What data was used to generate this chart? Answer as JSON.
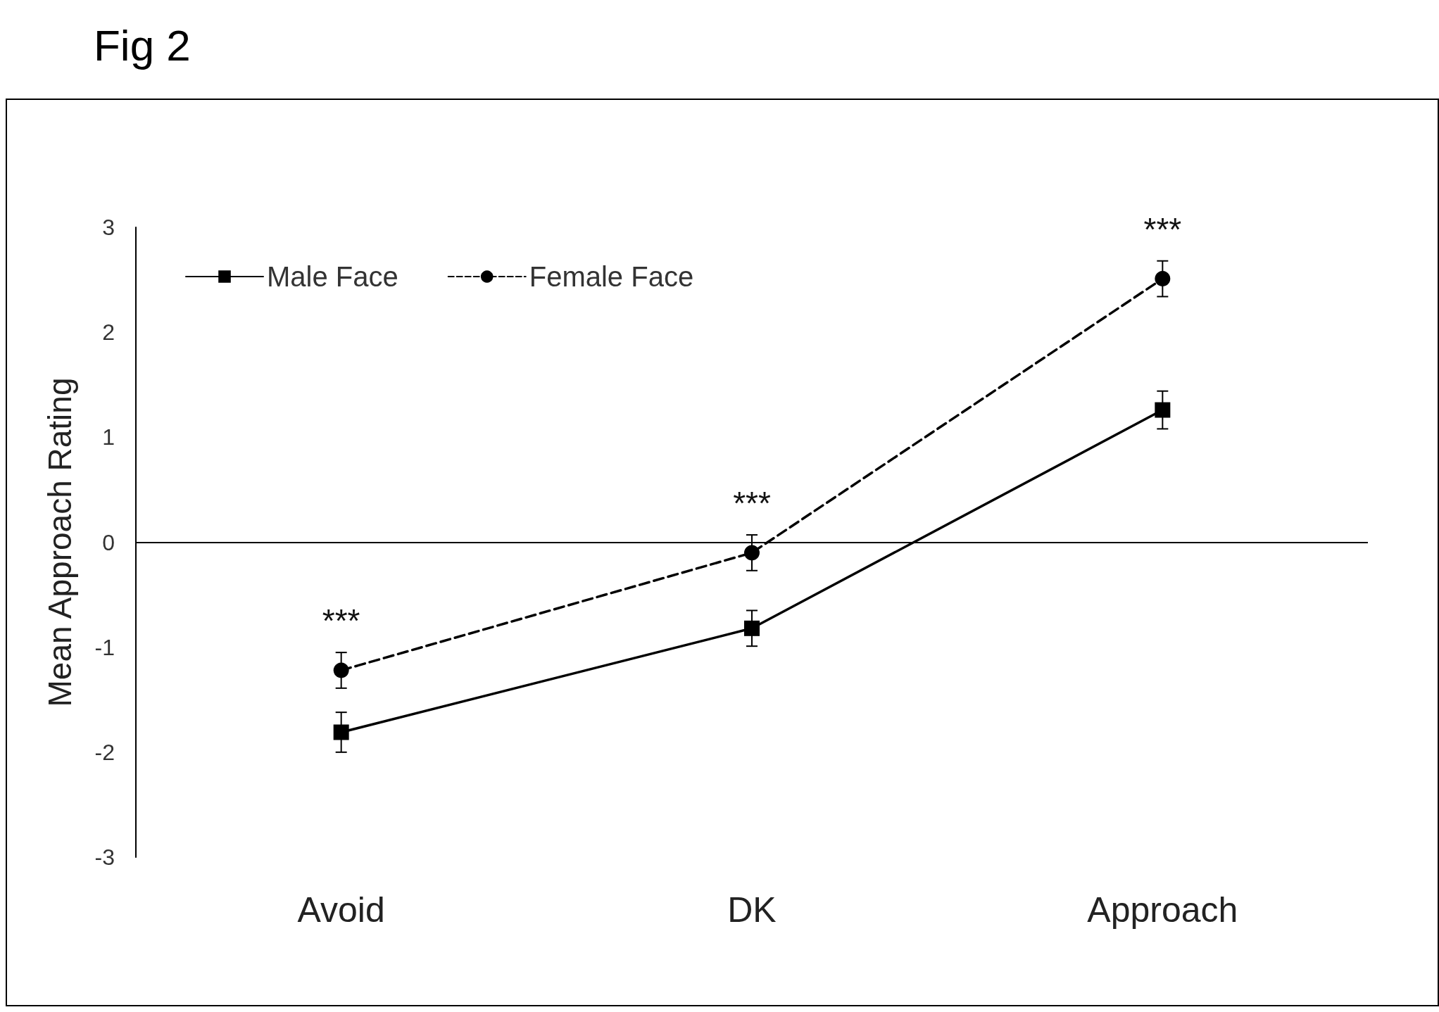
{
  "chart_data": {
    "type": "line",
    "title": "Fig 2",
    "ylabel": "Mean Approach Rating",
    "categories": [
      "Avoid",
      "DK",
      "Approach"
    ],
    "series": [
      {
        "name": "Male Face",
        "color": "#000000",
        "values": [
          -1.81,
          -0.82,
          1.26
        ],
        "errors": [
          0.19,
          0.17,
          0.18
        ],
        "marker": "square",
        "line_style": "solid"
      },
      {
        "name": "Female Face",
        "color": "#000000",
        "values": [
          -1.22,
          -0.1,
          2.51
        ],
        "errors": [
          0.17,
          0.17,
          0.17
        ],
        "marker": "circle",
        "line_style": "dashed"
      }
    ],
    "ylim": [
      -3,
      3
    ],
    "yticks": [
      -3,
      -2,
      -1,
      0,
      1,
      2,
      3
    ],
    "grid": false,
    "legend": "top left",
    "ref_lines": [
      {
        "axis": "y",
        "value": 0,
        "color": "#000000"
      }
    ],
    "annotations": [
      "***",
      "***",
      "***"
    ]
  }
}
